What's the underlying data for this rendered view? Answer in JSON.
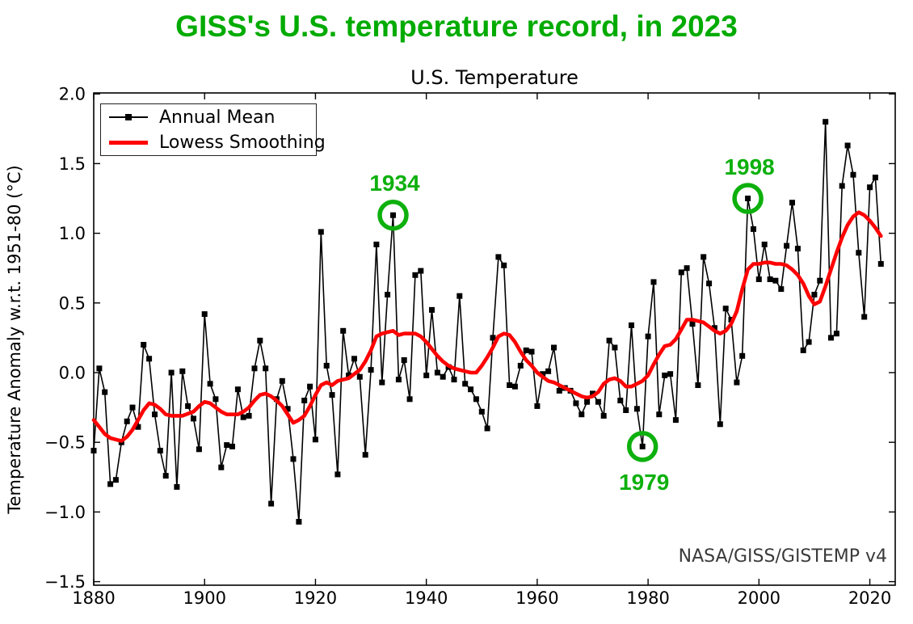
{
  "header": {
    "title": "GISS's U.S. temperature record, in 2023",
    "title_color": "#00ab00"
  },
  "chart": {
    "subtitle": "U.S. Temperature",
    "y_axis_label": "Temperature Anomaly w.r.t. 1951-80 (°C)",
    "watermark": "NASA/GISS/GISTEMP v4",
    "watermark_color": "#3a3a3a",
    "annotation_color": "#0db00d",
    "legend": {
      "items": [
        {
          "label": "Annual Mean"
        },
        {
          "label": "Lowess Smoothing"
        }
      ]
    },
    "annotations": [
      {
        "label": "1934",
        "year": 1934,
        "value": 1.13,
        "placement": "above"
      },
      {
        "label": "1998",
        "year": 1998,
        "value": 1.25,
        "placement": "above"
      },
      {
        "label": "1979",
        "year": 1979,
        "value": -0.53,
        "placement": "below"
      }
    ]
  },
  "chart_data": {
    "type": "line",
    "title": "U.S. Temperature",
    "xlabel": "",
    "ylabel": "Temperature Anomaly w.r.t. 1951-80 (°C)",
    "xlim": [
      1880,
      2024.6
    ],
    "ylim": [
      -1.53,
      2.01
    ],
    "x_ticks": [
      1880,
      1900,
      1920,
      1940,
      1960,
      1980,
      2000,
      2020
    ],
    "x_tick_labels": [
      "1880",
      "1900",
      "1920",
      "1940",
      "1960",
      "1980",
      "2000",
      "2020"
    ],
    "y_ticks": [
      -1.5,
      -1.0,
      -0.5,
      0.0,
      0.5,
      1.0,
      1.5,
      2.0
    ],
    "y_tick_labels": [
      "−1.5",
      "−1.0",
      "−0.5",
      "0.0",
      "0.5",
      "1.0",
      "1.5",
      "2.0"
    ],
    "grid": false,
    "legend_position": "upper left",
    "series": [
      {
        "name": "Annual Mean",
        "color": "#000000",
        "marker": "square",
        "start_year": 1880,
        "values": [
          -0.56,
          0.03,
          -0.14,
          -0.8,
          -0.77,
          -0.5,
          -0.35,
          -0.25,
          -0.39,
          0.2,
          0.1,
          -0.3,
          -0.56,
          -0.74,
          0.0,
          -0.82,
          0.01,
          -0.24,
          -0.33,
          -0.55,
          0.42,
          -0.08,
          -0.19,
          -0.68,
          -0.52,
          -0.53,
          -0.12,
          -0.32,
          -0.31,
          0.03,
          0.23,
          0.03,
          -0.94,
          -0.19,
          -0.06,
          -0.26,
          -0.62,
          -1.07,
          -0.2,
          -0.1,
          -0.48,
          1.01,
          0.05,
          -0.16,
          -0.73,
          0.3,
          -0.02,
          0.1,
          -0.03,
          -0.59,
          0.02,
          0.92,
          -0.07,
          0.56,
          1.13,
          -0.05,
          0.09,
          -0.19,
          0.7,
          0.73,
          -0.02,
          0.45,
          0.0,
          -0.03,
          0.04,
          -0.05,
          0.55,
          -0.08,
          -0.12,
          -0.19,
          -0.28,
          -0.4,
          0.25,
          0.83,
          0.77,
          -0.09,
          -0.1,
          0.05,
          0.16,
          0.15,
          -0.24,
          -0.01,
          0.01,
          0.18,
          -0.13,
          -0.11,
          -0.13,
          -0.22,
          -0.3,
          -0.21,
          -0.15,
          -0.21,
          -0.31,
          0.23,
          0.18,
          -0.2,
          -0.27,
          0.34,
          -0.26,
          -0.53,
          0.26,
          0.65,
          -0.3,
          -0.02,
          -0.01,
          -0.34,
          0.72,
          0.75,
          0.35,
          -0.09,
          0.83,
          0.64,
          0.32,
          -0.37,
          0.46,
          0.38,
          -0.07,
          0.12,
          1.25,
          1.03,
          0.67,
          0.92,
          0.67,
          0.66,
          0.6,
          0.91,
          1.22,
          0.89,
          0.16,
          0.22,
          0.56,
          0.66,
          1.8,
          0.25,
          0.28,
          1.34,
          1.63,
          1.42,
          0.86,
          0.4,
          1.33,
          1.4,
          0.78
        ]
      },
      {
        "name": "Lowess Smoothing",
        "color": "#ff0000",
        "points": [
          [
            1880,
            -0.34
          ],
          [
            1881,
            -0.39
          ],
          [
            1882,
            -0.44
          ],
          [
            1883,
            -0.47
          ],
          [
            1884,
            -0.48
          ],
          [
            1885,
            -0.49
          ],
          [
            1886,
            -0.46
          ],
          [
            1887,
            -0.41
          ],
          [
            1888,
            -0.34
          ],
          [
            1889,
            -0.27
          ],
          [
            1890,
            -0.22
          ],
          [
            1891,
            -0.23
          ],
          [
            1892,
            -0.26
          ],
          [
            1893,
            -0.3
          ],
          [
            1894,
            -0.31
          ],
          [
            1896,
            -0.31
          ],
          [
            1898,
            -0.28
          ],
          [
            1899,
            -0.24
          ],
          [
            1900,
            -0.21
          ],
          [
            1901,
            -0.22
          ],
          [
            1902,
            -0.25
          ],
          [
            1903,
            -0.28
          ],
          [
            1904,
            -0.3
          ],
          [
            1906,
            -0.3
          ],
          [
            1907,
            -0.28
          ],
          [
            1908,
            -0.25
          ],
          [
            1909,
            -0.2
          ],
          [
            1910,
            -0.16
          ],
          [
            1911,
            -0.15
          ],
          [
            1912,
            -0.17
          ],
          [
            1913,
            -0.2
          ],
          [
            1914,
            -0.24
          ],
          [
            1915,
            -0.3
          ],
          [
            1916,
            -0.36
          ],
          [
            1917,
            -0.34
          ],
          [
            1918,
            -0.31
          ],
          [
            1919,
            -0.24
          ],
          [
            1920,
            -0.16
          ],
          [
            1921,
            -0.09
          ],
          [
            1922,
            -0.07
          ],
          [
            1923,
            -0.09
          ],
          [
            1924,
            -0.06
          ],
          [
            1925,
            -0.05
          ],
          [
            1926,
            -0.04
          ],
          [
            1927,
            -0.01
          ],
          [
            1928,
            0.02
          ],
          [
            1929,
            0.08
          ],
          [
            1930,
            0.16
          ],
          [
            1931,
            0.26
          ],
          [
            1932,
            0.28
          ],
          [
            1933,
            0.29
          ],
          [
            1934,
            0.3
          ],
          [
            1935,
            0.27
          ],
          [
            1936,
            0.28
          ],
          [
            1937,
            0.28
          ],
          [
            1938,
            0.28
          ],
          [
            1939,
            0.26
          ],
          [
            1940,
            0.22
          ],
          [
            1941,
            0.17
          ],
          [
            1942,
            0.12
          ],
          [
            1943,
            0.08
          ],
          [
            1944,
            0.05
          ],
          [
            1945,
            0.03
          ],
          [
            1946,
            0.02
          ],
          [
            1947,
            0.01
          ],
          [
            1948,
            0.0
          ],
          [
            1949,
            0.0
          ],
          [
            1950,
            0.05
          ],
          [
            1951,
            0.11
          ],
          [
            1952,
            0.18
          ],
          [
            1953,
            0.26
          ],
          [
            1954,
            0.28
          ],
          [
            1955,
            0.27
          ],
          [
            1956,
            0.22
          ],
          [
            1957,
            0.15
          ],
          [
            1958,
            0.09
          ],
          [
            1959,
            0.05
          ],
          [
            1960,
            0.0
          ],
          [
            1961,
            -0.03
          ],
          [
            1962,
            -0.06
          ],
          [
            1963,
            -0.07
          ],
          [
            1964,
            -0.09
          ],
          [
            1965,
            -0.11
          ],
          [
            1966,
            -0.13
          ],
          [
            1967,
            -0.15
          ],
          [
            1968,
            -0.17
          ],
          [
            1969,
            -0.18
          ],
          [
            1970,
            -0.17
          ],
          [
            1971,
            -0.14
          ],
          [
            1972,
            -0.08
          ],
          [
            1973,
            -0.05
          ],
          [
            1974,
            -0.04
          ],
          [
            1975,
            -0.06
          ],
          [
            1976,
            -0.1
          ],
          [
            1977,
            -0.1
          ],
          [
            1978,
            -0.08
          ],
          [
            1979,
            -0.06
          ],
          [
            1980,
            -0.02
          ],
          [
            1981,
            0.06
          ],
          [
            1982,
            0.13
          ],
          [
            1983,
            0.19
          ],
          [
            1984,
            0.2
          ],
          [
            1985,
            0.24
          ],
          [
            1986,
            0.31
          ],
          [
            1987,
            0.38
          ],
          [
            1988,
            0.38
          ],
          [
            1989,
            0.37
          ],
          [
            1990,
            0.36
          ],
          [
            1991,
            0.33
          ],
          [
            1992,
            0.3
          ],
          [
            1993,
            0.28
          ],
          [
            1994,
            0.3
          ],
          [
            1995,
            0.35
          ],
          [
            1996,
            0.44
          ],
          [
            1997,
            0.6
          ],
          [
            1998,
            0.74
          ],
          [
            1999,
            0.78
          ],
          [
            2000,
            0.78
          ],
          [
            2001,
            0.79
          ],
          [
            2002,
            0.79
          ],
          [
            2003,
            0.78
          ],
          [
            2004,
            0.78
          ],
          [
            2005,
            0.77
          ],
          [
            2006,
            0.74
          ],
          [
            2007,
            0.7
          ],
          [
            2008,
            0.64
          ],
          [
            2009,
            0.55
          ],
          [
            2010,
            0.49
          ],
          [
            2011,
            0.51
          ],
          [
            2012,
            0.62
          ],
          [
            2013,
            0.74
          ],
          [
            2014,
            0.86
          ],
          [
            2015,
            0.97
          ],
          [
            2016,
            1.06
          ],
          [
            2017,
            1.12
          ],
          [
            2018,
            1.15
          ],
          [
            2019,
            1.13
          ],
          [
            2020,
            1.09
          ],
          [
            2021,
            1.04
          ],
          [
            2022,
            0.98
          ]
        ]
      }
    ]
  }
}
